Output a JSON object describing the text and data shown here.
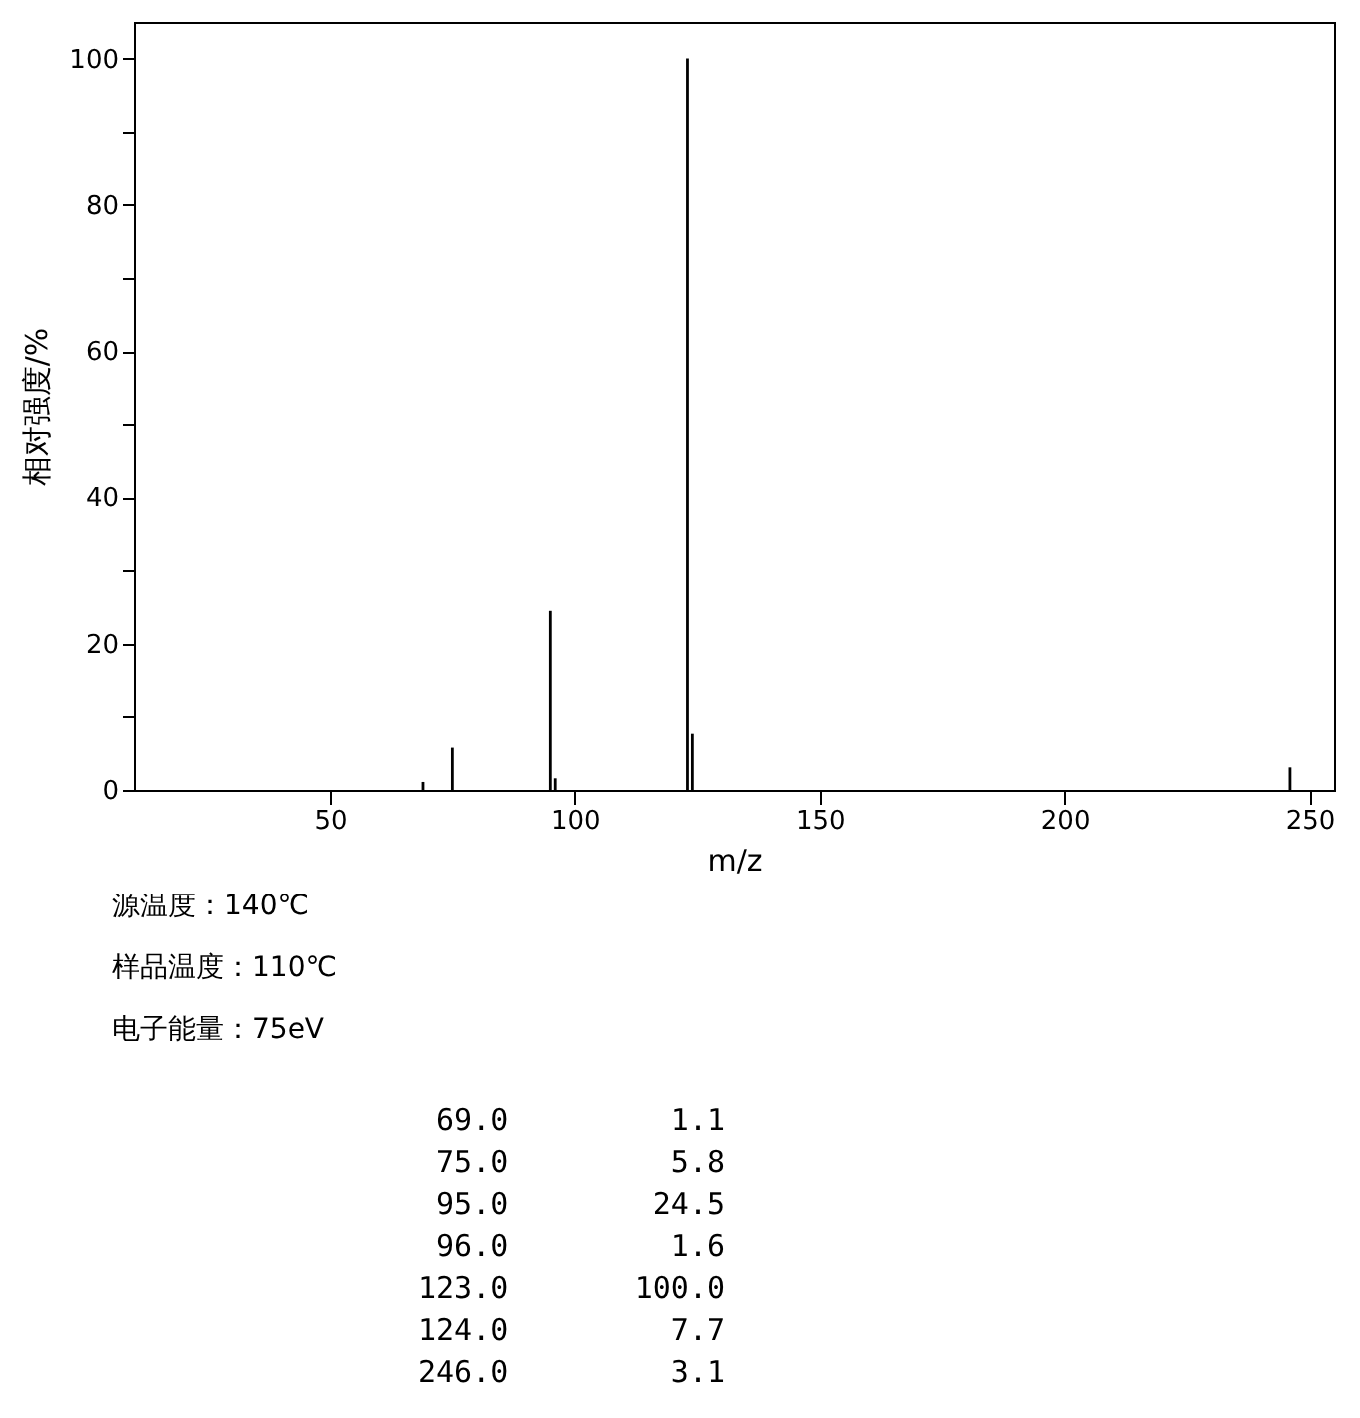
{
  "chart_data": {
    "type": "bar",
    "xlabel": "m/z",
    "ylabel": "相对强度/%",
    "x": [
      69.0,
      75.0,
      95.0,
      96.0,
      123.0,
      124.0,
      246.0
    ],
    "values": [
      1.1,
      5.8,
      24.5,
      1.6,
      100.0,
      7.7,
      3.1
    ],
    "color": "#000000",
    "xlim": [
      10,
      255
    ],
    "xticks": [
      50,
      100,
      150,
      200,
      250
    ],
    "ylim": [
      0,
      105
    ],
    "yticks": [
      0,
      {
        "value": 10,
        "label": null
      },
      20,
      {
        "value": 30,
        "label": null
      },
      40,
      {
        "value": 50,
        "label": null
      },
      60,
      {
        "value": 70,
        "label": null
      },
      80,
      {
        "value": 90,
        "label": null
      },
      100
    ],
    "annotations": [
      "源温度：140℃",
      "样品温度：110℃",
      "电子能量：75eV",
      " 69.0         1.1",
      " 75.0         5.8",
      " 95.0        24.5",
      " 96.0         1.6",
      "123.0       100.0",
      "124.0         7.7",
      "246.0         3.1"
    ]
  }
}
